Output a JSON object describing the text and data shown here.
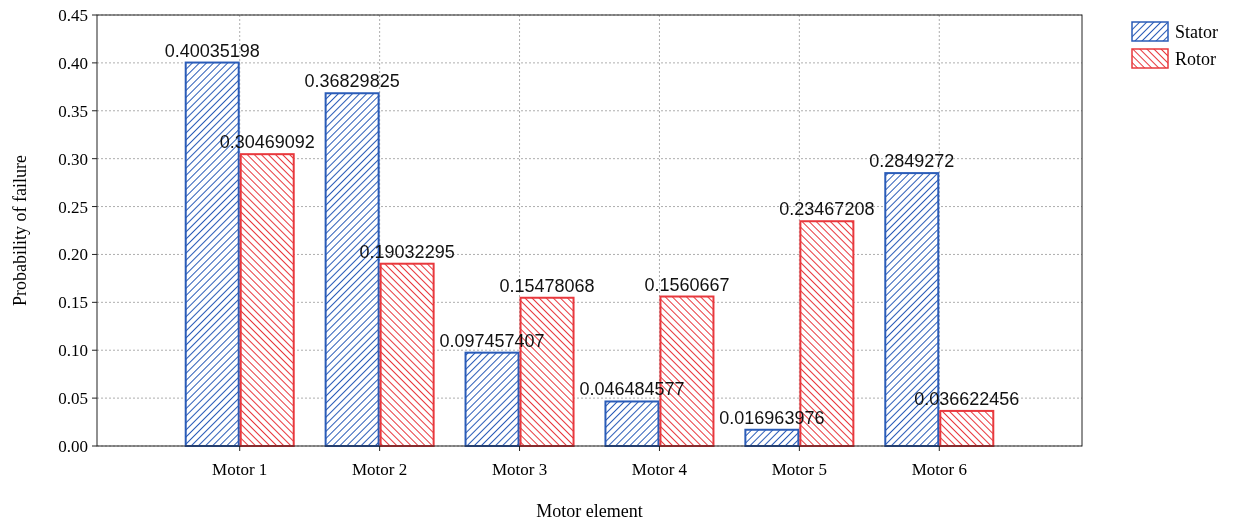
{
  "chart_data": {
    "type": "bar",
    "xlabel": "Motor element",
    "ylabel": "Probability of failure",
    "categories": [
      "Motor 1",
      "Motor 2",
      "Motor 3",
      "Motor 4",
      "Motor 5",
      "Motor 6"
    ],
    "series": [
      {
        "name": "Stator",
        "color": "#2a5cb8",
        "values": [
          0.40035198,
          0.36829825,
          0.097457407,
          0.046484577,
          0.016963976,
          0.2849272
        ]
      },
      {
        "name": "Rotor",
        "color": "#e8383d",
        "values": [
          0.30469092,
          0.19032295,
          0.15478068,
          0.1560667,
          0.23467208,
          0.036622456
        ]
      }
    ],
    "ylim": [
      0,
      0.45
    ],
    "yticks": [
      {
        "value": 0,
        "label": "0.00"
      },
      {
        "value": 0.05,
        "label": "0.05"
      },
      {
        "value": 0.1,
        "label": "0.10"
      },
      {
        "value": 0.15,
        "label": "0.15"
      },
      {
        "value": 0.2,
        "label": "0.20"
      },
      {
        "value": 0.25,
        "label": "0.25"
      },
      {
        "value": 0.3,
        "label": "0.30"
      },
      {
        "value": 0.35,
        "label": "0.35"
      },
      {
        "value": 0.4,
        "label": "0.40"
      },
      {
        "value": 0.45,
        "label": "0.45"
      }
    ],
    "grid": true,
    "legend": "top right",
    "data_labels": true
  }
}
